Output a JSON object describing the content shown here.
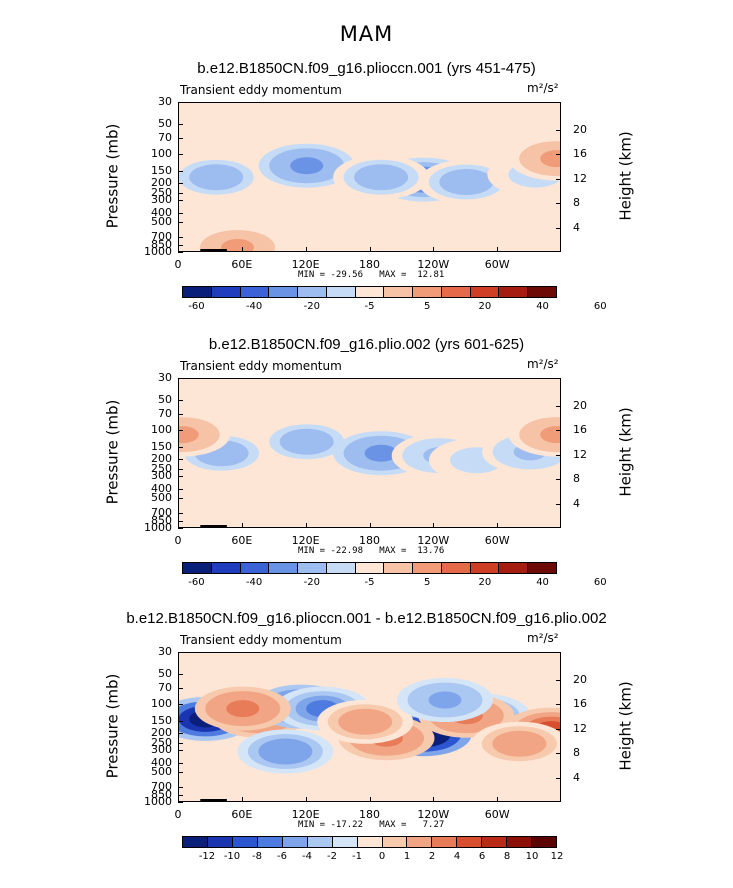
{
  "figure_title": "MAM",
  "colors": {
    "background_fill": "#fde6d6",
    "scale_full": [
      "#0a1f7a",
      "#1f3dbd",
      "#3b63d6",
      "#6a93e6",
      "#9dbcef",
      "#c6dcf6",
      "#fde6d6",
      "#f7c3a6",
      "#f09c78",
      "#e6694a",
      "#cf3f26",
      "#a51d10",
      "#6e0a05"
    ],
    "scale_diff": [
      "#0a1f7a",
      "#1a35b0",
      "#2c56d0",
      "#4d7be0",
      "#7ea4ea",
      "#aac8f1",
      "#d4e5f8",
      "#fde6d6",
      "#f7c9ad",
      "#f2a584",
      "#e87b58",
      "#d84f30",
      "#b92b18",
      "#8c0f08",
      "#5a0503"
    ]
  },
  "chart_data": [
    {
      "type": "contour",
      "title": "b.e12.B1850CN.f09_g16.plioccn.001 (yrs 451-475)",
      "left_label": "Transient eddy momentum",
      "units_label": "m²/s²",
      "ylabel": "Pressure (mb)",
      "ylabel_right": "Height (km)",
      "yticks": [
        "30",
        "50",
        "70",
        "100",
        "150",
        "200",
        "250",
        "300",
        "400",
        "500",
        "700",
        "850",
        "1000"
      ],
      "ytick_values": [
        30,
        50,
        70,
        100,
        150,
        200,
        250,
        300,
        400,
        500,
        700,
        850,
        1000
      ],
      "height_ticks": [
        "20",
        "16",
        "12",
        "8",
        "4"
      ],
      "height_values": [
        20,
        16,
        12,
        8,
        4
      ],
      "xticks": [
        "0",
        "60E",
        "120E",
        "180",
        "120W",
        "60W"
      ],
      "xtick_values": [
        0,
        60,
        120,
        180,
        240,
        300
      ],
      "xlim": [
        0,
        360
      ],
      "ylim": [
        30,
        1000
      ],
      "min_max_text": "MIN = -29.56   MAX =  12.81",
      "min": -29.56,
      "max": 12.81,
      "colorbar_labels": [
        "-60",
        "-40",
        "-20",
        "-5",
        "5",
        "20",
        "40",
        "60"
      ],
      "colorbar_levels": [
        "-60",
        "-50",
        "-40",
        "-30",
        "-20",
        "-10",
        "-5",
        "0",
        "5",
        "10",
        "20",
        "30",
        "40",
        "50",
        "60"
      ],
      "features": [
        {
          "lon": 35,
          "p": 170,
          "value": -20
        },
        {
          "lon": 120,
          "p": 130,
          "value": -25
        },
        {
          "lon": 230,
          "p": 180,
          "value": -28
        },
        {
          "lon": 190,
          "p": 170,
          "value": -20
        },
        {
          "lon": 270,
          "p": 190,
          "value": -15
        },
        {
          "lon": 335,
          "p": 160,
          "value": -10
        },
        {
          "lon": 355,
          "p": 110,
          "value": 10
        },
        {
          "lon": 55,
          "p": 880,
          "value": 10
        }
      ]
    },
    {
      "type": "contour",
      "title": "b.e12.B1850CN.f09_g16.plio.002 (yrs 601-625)",
      "left_label": "Transient eddy momentum",
      "units_label": "m²/s²",
      "ylabel": "Pressure (mb)",
      "ylabel_right": "Height (km)",
      "yticks": [
        "30",
        "50",
        "70",
        "100",
        "150",
        "200",
        "250",
        "300",
        "400",
        "500",
        "700",
        "850",
        "1000"
      ],
      "ytick_values": [
        30,
        50,
        70,
        100,
        150,
        200,
        250,
        300,
        400,
        500,
        700,
        850,
        1000
      ],
      "height_ticks": [
        "20",
        "16",
        "12",
        "8",
        "4"
      ],
      "height_values": [
        20,
        16,
        12,
        8,
        4
      ],
      "xticks": [
        "0",
        "60E",
        "120E",
        "180",
        "120W",
        "60W"
      ],
      "xtick_values": [
        0,
        60,
        120,
        180,
        240,
        300
      ],
      "xlim": [
        0,
        360
      ],
      "ylim": [
        30,
        1000
      ],
      "min_max_text": "MIN = -22.98   MAX =  13.76",
      "min": -22.98,
      "max": 13.76,
      "colorbar_labels": [
        "-60",
        "-40",
        "-20",
        "-5",
        "5",
        "20",
        "40",
        "60"
      ],
      "colorbar_levels": [
        "-60",
        "-50",
        "-40",
        "-30",
        "-20",
        "-10",
        "-5",
        "0",
        "5",
        "10",
        "20",
        "30",
        "40",
        "50",
        "60"
      ],
      "features": [
        {
          "lon": 40,
          "p": 170,
          "value": -15
        },
        {
          "lon": 120,
          "p": 130,
          "value": -18
        },
        {
          "lon": 190,
          "p": 170,
          "value": -22
        },
        {
          "lon": 245,
          "p": 180,
          "value": -12
        },
        {
          "lon": 280,
          "p": 200,
          "value": -10
        },
        {
          "lon": 330,
          "p": 165,
          "value": -12
        },
        {
          "lon": 355,
          "p": 110,
          "value": 10
        },
        {
          "lon": 3,
          "p": 110,
          "value": 10
        }
      ]
    },
    {
      "type": "contour",
      "title": "b.e12.B1850CN.f09_g16.plioccn.001 - b.e12.B1850CN.f09_g16.plio.002",
      "left_label": "Transient eddy momentum",
      "units_label": "m²/s²",
      "ylabel": "Pressure (mb)",
      "ylabel_right": "Height (km)",
      "yticks": [
        "30",
        "50",
        "70",
        "100",
        "150",
        "200",
        "250",
        "300",
        "400",
        "500",
        "700",
        "850",
        "1000"
      ],
      "ytick_values": [
        30,
        50,
        70,
        100,
        150,
        200,
        250,
        300,
        400,
        500,
        700,
        850,
        1000
      ],
      "height_ticks": [
        "20",
        "16",
        "12",
        "8",
        "4"
      ],
      "height_values": [
        20,
        16,
        12,
        8,
        4
      ],
      "xticks": [
        "0",
        "60E",
        "120E",
        "180",
        "120W",
        "60W"
      ],
      "xtick_values": [
        0,
        60,
        120,
        180,
        240,
        300
      ],
      "xlim": [
        0,
        360
      ],
      "ylim": [
        30,
        1000
      ],
      "min_max_text": "MIN = -17.22   MAX =   7.27",
      "min": -17.22,
      "max": 7.27,
      "colorbar_labels": [
        "-12",
        "-10",
        "-8",
        "-6",
        "-4",
        "-2",
        "-1",
        "0",
        "1",
        "2",
        "4",
        "6",
        "8",
        "10",
        "12"
      ],
      "colorbar_levels": [
        "-12",
        "-10",
        "-8",
        "-6",
        "-4",
        "-2",
        "-1",
        "0",
        "1",
        "2",
        "4",
        "6",
        "8",
        "10",
        "12"
      ],
      "features": [
        {
          "lon": 25,
          "p": 140,
          "value": -14
        },
        {
          "lon": 75,
          "p": 130,
          "value": 5
        },
        {
          "lon": 115,
          "p": 105,
          "value": -10
        },
        {
          "lon": 135,
          "p": 110,
          "value": -8
        },
        {
          "lon": 230,
          "p": 200,
          "value": -17
        },
        {
          "lon": 195,
          "p": 220,
          "value": 4
        },
        {
          "lon": 175,
          "p": 150,
          "value": 3
        },
        {
          "lon": 285,
          "p": 130,
          "value": -8
        },
        {
          "lon": 270,
          "p": 130,
          "value": 4
        },
        {
          "lon": 350,
          "p": 180,
          "value": 6
        },
        {
          "lon": 320,
          "p": 250,
          "value": 3
        },
        {
          "lon": 250,
          "p": 90,
          "value": -5
        },
        {
          "lon": 100,
          "p": 300,
          "value": -6
        },
        {
          "lon": 60,
          "p": 110,
          "value": 4
        }
      ]
    }
  ]
}
